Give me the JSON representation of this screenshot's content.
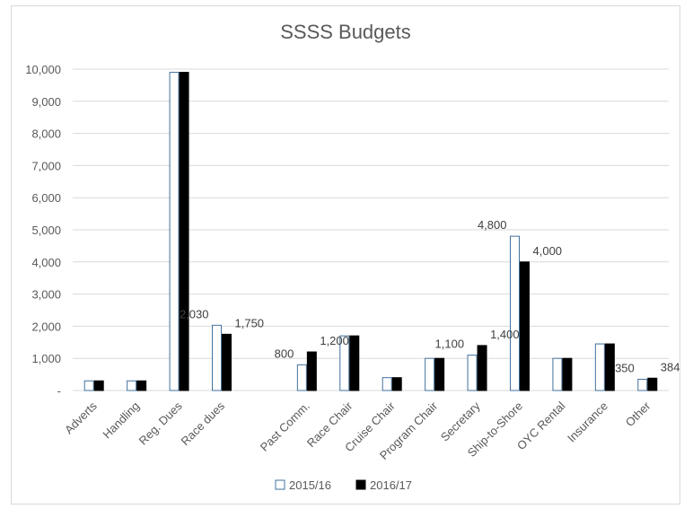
{
  "chart_data": {
    "type": "bar",
    "title": "SSSS Budgets",
    "xlabel": "",
    "ylabel": "",
    "ylim": [
      0,
      10000
    ],
    "yticks": [
      0,
      1000,
      2000,
      3000,
      4000,
      5000,
      6000,
      7000,
      8000,
      9000,
      10000
    ],
    "ytick_labels": [
      "-",
      "1,000",
      "2,000",
      "3,000",
      "4,000",
      "5,000",
      "6,000",
      "7,000",
      "8,000",
      "9,000",
      "10,000"
    ],
    "grid": true,
    "legend_position": "bottom",
    "categories": [
      "Adverts",
      "Handling",
      "Reg. Dues",
      "Race dues",
      "",
      "Past Comm.",
      "Race Chair",
      "Cruise Chair",
      "Program Chair",
      "Secretary",
      "Ship-to-Shore",
      "OYC Rental",
      "Insurance",
      "Other"
    ],
    "series": [
      {
        "name": "2015/16",
        "color": "#ffffff",
        "stroke": "#41719c",
        "values": [
          300,
          300,
          9900,
          2030,
          null,
          800,
          1700,
          400,
          1000,
          1100,
          4800,
          1000,
          1450,
          350
        ],
        "labels": [
          null,
          null,
          null,
          "2,030",
          null,
          "800",
          null,
          null,
          null,
          "1,100",
          "4,800",
          null,
          null,
          "350"
        ]
      },
      {
        "name": "2016/17",
        "color": "#000000",
        "stroke": "#000000",
        "values": [
          300,
          300,
          9900,
          1750,
          null,
          1200,
          1700,
          400,
          1000,
          1400,
          4000,
          1000,
          1450,
          384
        ],
        "labels": [
          null,
          null,
          null,
          "1,750",
          null,
          "1,200",
          null,
          null,
          null,
          "1,400",
          "4,000",
          null,
          null,
          "384"
        ]
      }
    ]
  }
}
